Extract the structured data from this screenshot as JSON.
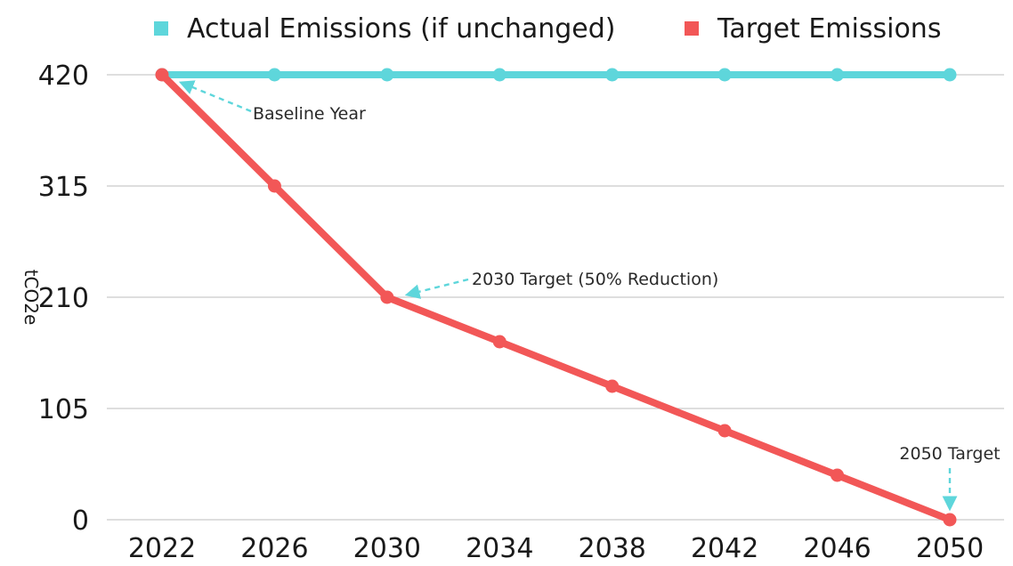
{
  "chart_data": {
    "type": "line",
    "x": [
      2022,
      2026,
      2030,
      2034,
      2038,
      2042,
      2046,
      2050
    ],
    "categories": [
      "2022",
      "2026",
      "2030",
      "2034",
      "2038",
      "2042",
      "2046",
      "2050"
    ],
    "series": [
      {
        "name": "Actual Emissions (if unchanged)",
        "color": "#5ed6db",
        "values": [
          420,
          420,
          420,
          420,
          420,
          420,
          420,
          420
        ]
      },
      {
        "name": "Target Emissions",
        "color": "#f25757",
        "values": [
          420,
          315,
          210,
          168,
          126,
          84,
          42,
          0
        ]
      }
    ],
    "title": "",
    "xlabel": "",
    "ylabel": "tCO2e",
    "ylim": [
      0,
      420
    ],
    "yticks": [
      0,
      105,
      210,
      315,
      420
    ],
    "yticklabels": [
      "0",
      "105",
      "210",
      "315",
      "420"
    ],
    "grid": true,
    "legend_position": "top",
    "annotations": [
      {
        "text": "Baseline Year",
        "x": 2022,
        "y": 420
      },
      {
        "text": "2030 Target (50% Reduction)",
        "x": 2030,
        "y": 210
      },
      {
        "text": "2050 Target",
        "x": 2050,
        "y": 0
      }
    ],
    "annotation_color": "#5ed6db",
    "grid_color": "#c9c9c9"
  }
}
